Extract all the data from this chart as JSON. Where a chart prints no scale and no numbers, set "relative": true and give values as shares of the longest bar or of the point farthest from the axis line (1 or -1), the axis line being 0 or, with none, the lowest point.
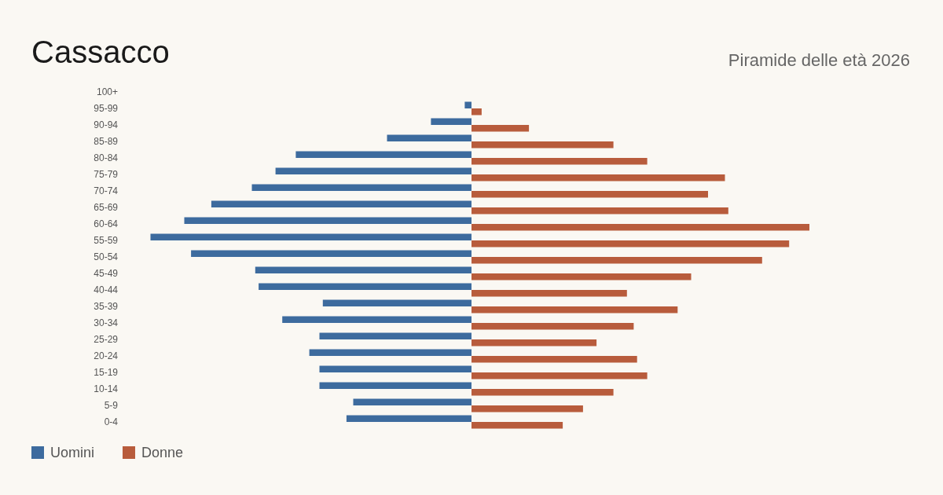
{
  "chart_data": {
    "type": "bar",
    "title": "Cassacco",
    "subtitle": "Piramide delle età 2026",
    "orientation": "horizontal",
    "relative": true,
    "legend": "bottom left",
    "categories": [
      "100+",
      "95-99",
      "90-94",
      "85-89",
      "80-84",
      "75-79",
      "70-74",
      "65-69",
      "60-64",
      "55-59",
      "50-54",
      "45-49",
      "40-44",
      "35-39",
      "30-34",
      "25-29",
      "20-24",
      "15-19",
      "10-14",
      "5-9",
      "0-4"
    ],
    "series": [
      {
        "name": "Uomini",
        "color": "#3d6b9e",
        "values": [
          0,
          -0.02,
          -0.12,
          -0.25,
          -0.52,
          -0.58,
          -0.65,
          -0.77,
          -0.85,
          -0.95,
          -0.83,
          -0.64,
          -0.63,
          -0.44,
          -0.56,
          -0.45,
          -0.48,
          -0.45,
          -0.45,
          -0.35,
          -0.37
        ]
      },
      {
        "name": "Donne",
        "color": "#b85c3c",
        "values": [
          0,
          0.03,
          0.17,
          0.42,
          0.52,
          0.75,
          0.7,
          0.76,
          1,
          0.94,
          0.86,
          0.65,
          0.46,
          0.61,
          0.48,
          0.37,
          0.49,
          0.52,
          0.42,
          0.33,
          0.27
        ]
      }
    ]
  }
}
